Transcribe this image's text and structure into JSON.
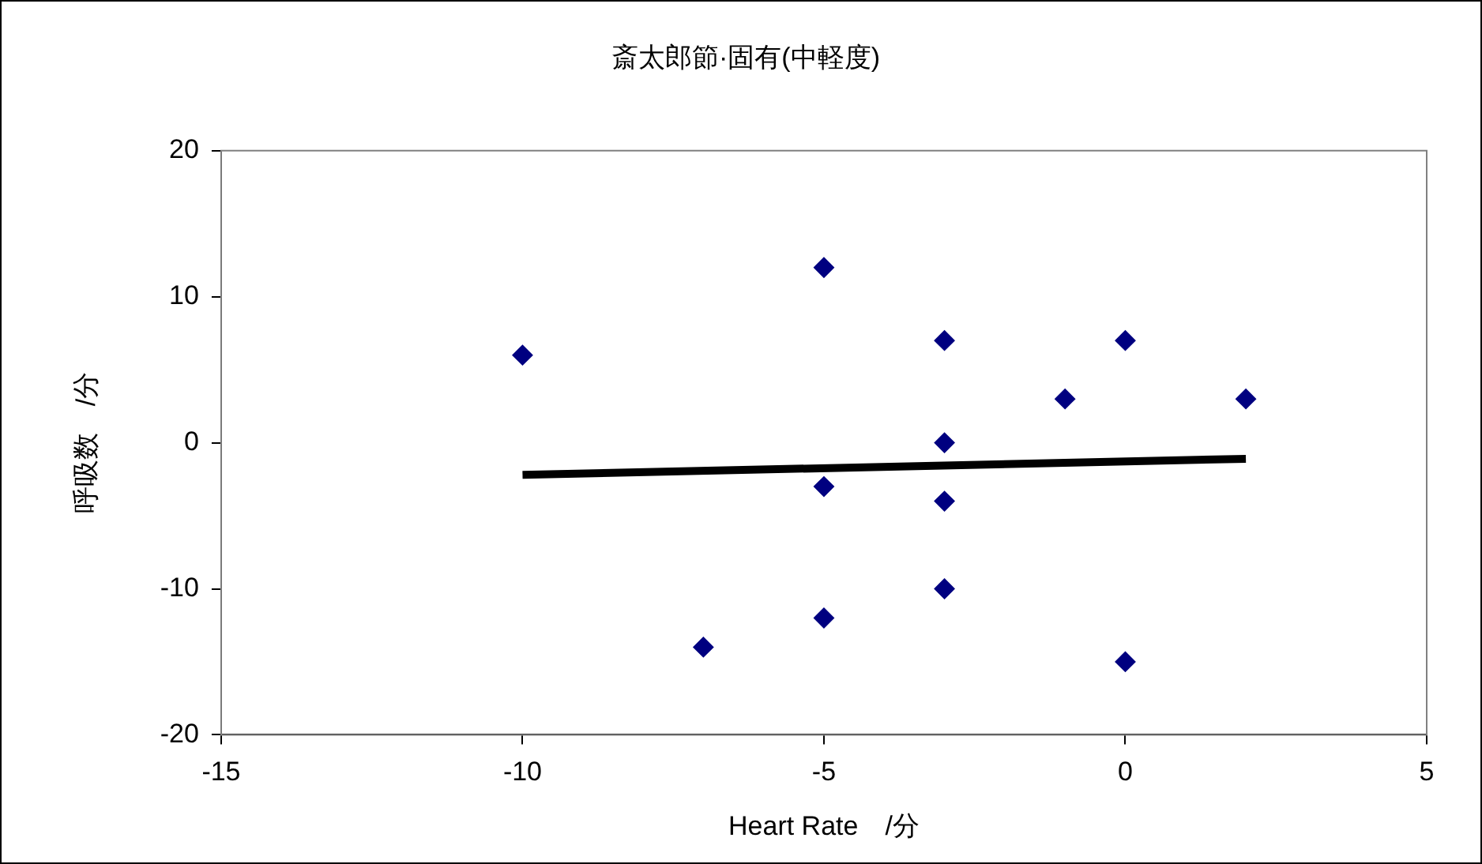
{
  "chart_data": {
    "type": "scatter",
    "title": "斎太郎節·固有(中軽度)",
    "xlabel": "Heart Rate　/分",
    "ylabel": "呼吸数　/分",
    "xlim": [
      -15,
      5
    ],
    "xticks": [
      -15,
      -10,
      -5,
      0,
      5
    ],
    "ylim": [
      -20,
      20
    ],
    "yticks": [
      -20,
      -10,
      0,
      10,
      20
    ],
    "grid": false,
    "legend": false,
    "series": [
      {
        "type": "scatter",
        "color": "#000080",
        "marker": "diamond",
        "x": [
          -10,
          -7,
          -5,
          -5,
          -5,
          -3,
          -3,
          -3,
          -3,
          -1,
          0,
          0,
          2
        ],
        "values": [
          6,
          -14,
          12,
          -3,
          -12,
          7,
          0,
          -4,
          -10,
          3,
          7,
          -15,
          3
        ]
      },
      {
        "type": "line",
        "color": "#000000",
        "marker": "none",
        "x": [
          -10,
          2
        ],
        "values": [
          -2.2,
          -1.1
        ]
      }
    ]
  }
}
